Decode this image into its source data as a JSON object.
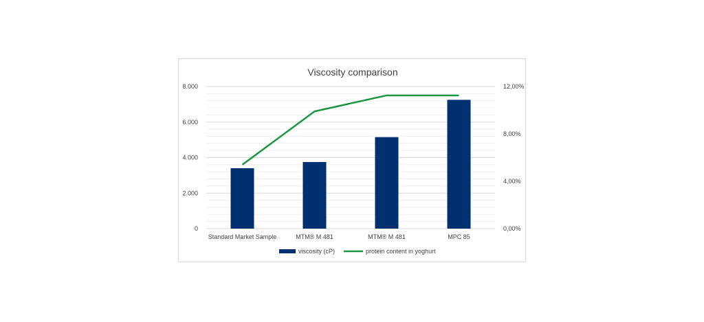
{
  "chart_data": {
    "type": "bar",
    "title": "Viscosity comparison",
    "categories": [
      "Standard Market Sample",
      "MTM® M 481",
      "MTM® M 481",
      "MPC 85"
    ],
    "y_left": {
      "ticks": [
        "0",
        "2.000",
        "4.000",
        "6.000",
        "8.000"
      ],
      "ylim": [
        0,
        8000
      ]
    },
    "y_right": {
      "ticks": [
        "0,00%",
        "4,00%",
        "8,00%",
        "12,00%"
      ],
      "ylim": [
        0,
        12
      ]
    },
    "series": [
      {
        "name": "viscosity (cP)",
        "type": "bar",
        "axis": "left",
        "color": "#003070",
        "values": [
          3400,
          3750,
          5150,
          7250
        ]
      },
      {
        "name": "protein content in yoghurt",
        "type": "line",
        "axis": "right",
        "color": "#1a9641",
        "values": [
          5.4,
          9.9,
          11.25,
          11.25
        ]
      }
    ],
    "grid": true,
    "legend_position": "bottom"
  }
}
